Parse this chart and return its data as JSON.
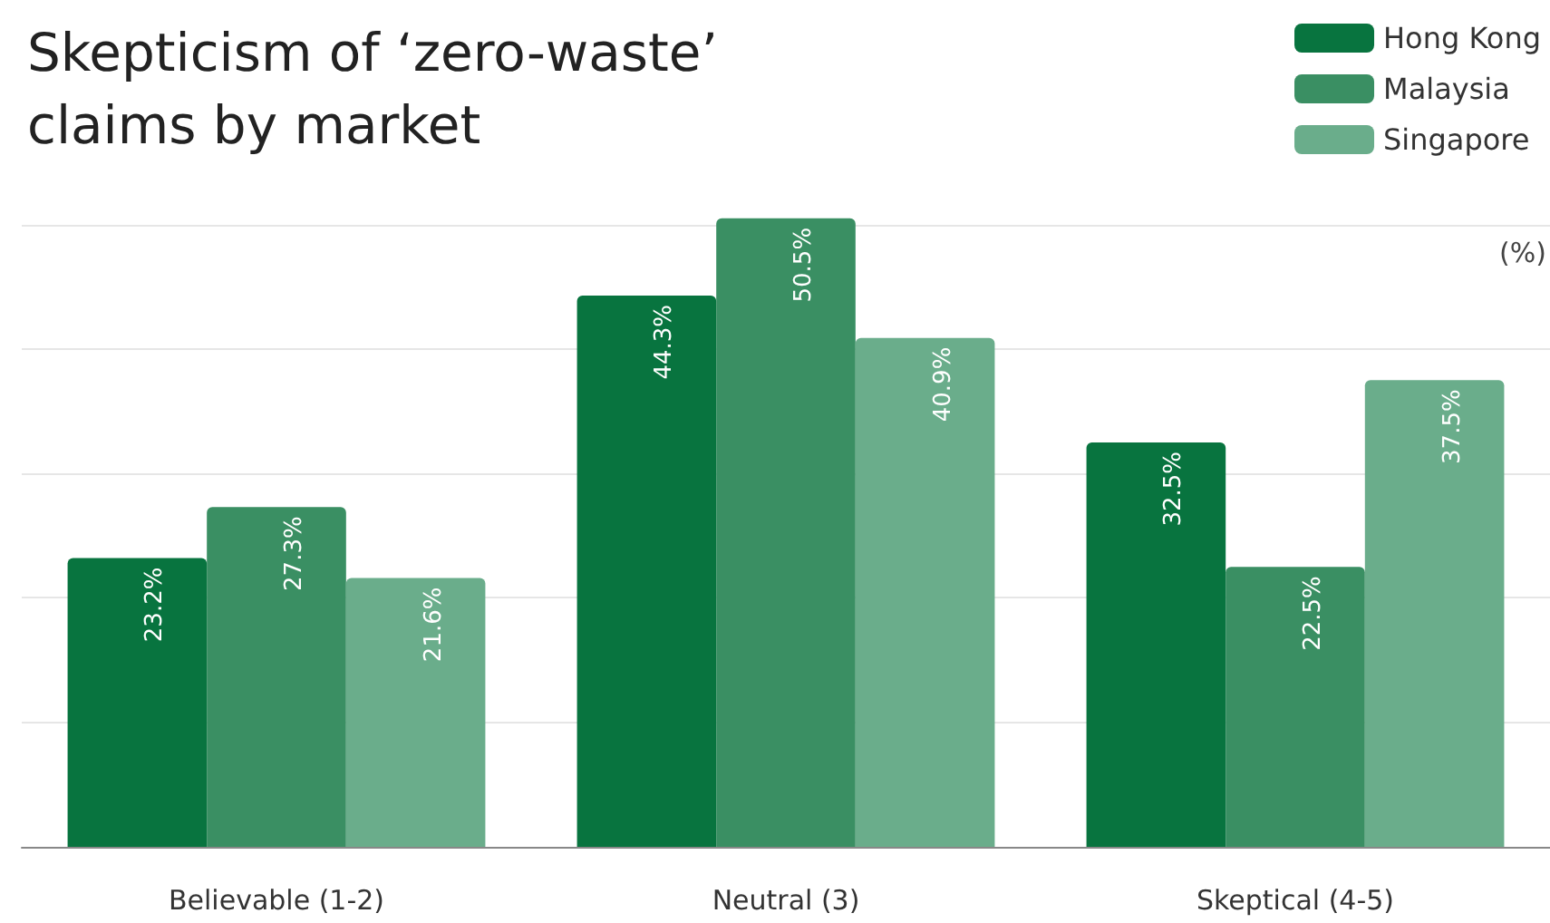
{
  "chart_data": {
    "type": "bar",
    "title": "Skepticism of ‘zero-waste’\nclaims by market",
    "ylabel": "(%)",
    "categories": [
      "Believable (1-2)",
      "Neutral (3)",
      "Skeptical (4-5)"
    ],
    "series": [
      {
        "name": "Hong Kong",
        "color": "#08743f",
        "values": [
          23.2,
          44.3,
          32.5
        ],
        "value_labels": [
          "23.2%",
          "44.3%",
          "32.5%"
        ]
      },
      {
        "name": "Malaysia",
        "color": "#3a8f63",
        "values": [
          27.3,
          50.5,
          22.5
        ],
        "value_labels": [
          "27.3%",
          "50.5%",
          "22.5%"
        ]
      },
      {
        "name": "Singapore",
        "color": "#6aad8b",
        "values": [
          21.6,
          40.9,
          37.5
        ],
        "value_labels": [
          "21.6%",
          "40.9%",
          "37.5%"
        ]
      }
    ],
    "ylim": [
      0,
      51
    ],
    "yticks": [
      {
        "value": 0,
        "label": null
      },
      {
        "value": 10,
        "label": null
      },
      {
        "value": 20,
        "label": null
      },
      {
        "value": 30,
        "label": null
      },
      {
        "value": 40,
        "label": null
      },
      {
        "value": 50,
        "label": null
      }
    ],
    "tick_labels": "x",
    "grid": "y",
    "legend": "top right"
  }
}
